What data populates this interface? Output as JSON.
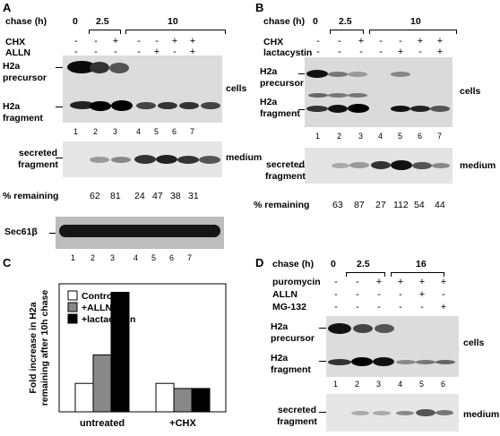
{
  "panelA": {
    "letter": "A",
    "chase_label": "chase (h)",
    "chase_values": [
      "0",
      "2.5",
      "10"
    ],
    "row_labels": [
      "CHX",
      "ALLN"
    ],
    "chx_signs": [
      "-",
      "-",
      "+",
      "-",
      "-",
      "+",
      "+"
    ],
    "alln_signs": [
      "-",
      "-",
      "-",
      "-",
      "+",
      "-",
      "+"
    ],
    "precursor_label": [
      "H2a",
      "precursor"
    ],
    "fragment_label": [
      "H2a",
      "fragment"
    ],
    "cells_label": "cells",
    "lanes": [
      "1",
      "2",
      "3",
      "4",
      "5",
      "6",
      "7"
    ],
    "secreted_label": [
      "secreted",
      "fragment"
    ],
    "medium_label": "medium",
    "remaining_label": "% remaining",
    "remaining": [
      "62",
      "81",
      "24",
      "47",
      "38",
      "31"
    ],
    "sec_label": "Sec61β",
    "sec_lanes": [
      "1",
      "2",
      "3",
      "4",
      "5",
      "6",
      "7"
    ]
  },
  "panelB": {
    "letter": "B",
    "chase_label": "chase (h)",
    "chase_values": [
      "0",
      "2.5",
      "10"
    ],
    "row_labels": [
      "CHX",
      "lactacystin"
    ],
    "chx_signs": [
      "-",
      "-",
      "+",
      "-",
      "-",
      "+",
      "+"
    ],
    "lact_signs": [
      "-",
      "-",
      "-",
      "-",
      "+",
      "-",
      "+"
    ],
    "precursor_label": [
      "H2a",
      "precursor"
    ],
    "fragment_label": [
      "H2a",
      "fragment"
    ],
    "cells_label": "cells",
    "lanes": [
      "1",
      "2",
      "3",
      "4",
      "5",
      "6",
      "7"
    ],
    "secreted_label": [
      "secreted",
      "fragment"
    ],
    "medium_label": "medium",
    "remaining_label": "% remaining",
    "remaining": [
      "63",
      "87",
      "27",
      "112",
      "54",
      "44"
    ]
  },
  "panelC": {
    "letter": "C",
    "chart_data": {
      "type": "bar",
      "categories": [
        "untreated",
        "+CHX"
      ],
      "series": [
        {
          "name": "Control",
          "values": [
            1.0,
            1.0
          ],
          "color": "#ffffff"
        },
        {
          "name": "+ALLN",
          "values": [
            2.0,
            0.82
          ],
          "color": "#888888"
        },
        {
          "name": "+lactacystin",
          "values": [
            4.2,
            0.82
          ],
          "color": "#000000"
        }
      ],
      "ylabel": "Fold increase in H2a remaining after 10h chase",
      "ylim": [
        0,
        4.5
      ],
      "legend": "top-left"
    }
  },
  "panelD": {
    "letter": "D",
    "chase_label": "chase (h)",
    "chase_values": [
      "0",
      "2.5",
      "16"
    ],
    "row_labels": [
      "puromycin",
      "ALLN",
      "MG-132"
    ],
    "puro_signs": [
      "-",
      "-",
      "+",
      "+",
      "+",
      "+"
    ],
    "alln_signs": [
      "-",
      "-",
      "-",
      "-",
      "+",
      "-"
    ],
    "mg_signs": [
      "-",
      "-",
      "-",
      "-",
      "-",
      "+"
    ],
    "precursor_label": [
      "H2a",
      "precursor"
    ],
    "fragment_label": [
      "H2a",
      "fragment"
    ],
    "cells_label": "cells",
    "lanes": [
      "1",
      "2",
      "3",
      "4",
      "5",
      "6"
    ],
    "secreted_label": [
      "secreted",
      "fragment"
    ],
    "medium_label": "medium"
  }
}
